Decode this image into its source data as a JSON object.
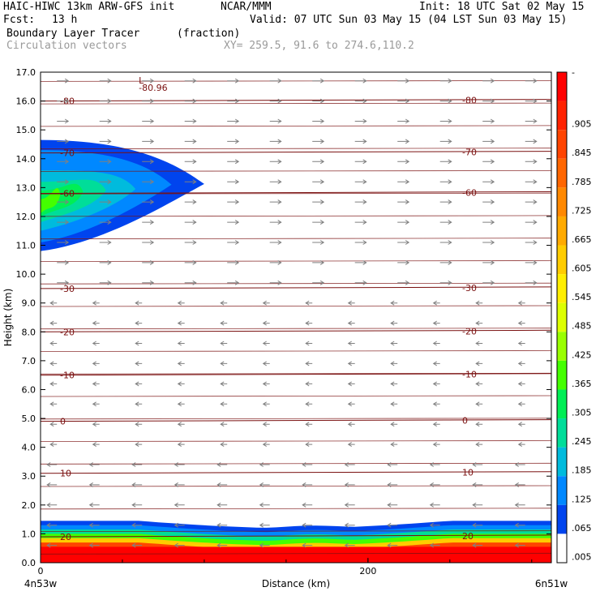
{
  "header": {
    "model": "HAIC-HIWC 13km ARW-GFS init",
    "org": "NCAR/MMM",
    "init": "Init: 18 UTC Sat 02 May 15",
    "fcst_label": "Fcst:",
    "fcst_value": "13 h",
    "valid": "Valid: 07 UTC Sun 03 May 15 (04 LST Sun 03 May 15)",
    "field_name": "Boundary Layer Tracer",
    "field_units": "(fraction)",
    "overlay_name": "Circulation vectors",
    "xy_range": "XY= 259.5, 91.6 to 274.6,110.2"
  },
  "colors": {
    "contour_line": "#7a1010",
    "vector": "#808080",
    "low_label": "L"
  },
  "chart_data": {
    "type": "heatmap",
    "title": "Boundary Layer Tracer",
    "xlabel": "Distance (km)",
    "ylabel": "Height (km)",
    "xlim": [
      0,
      312
    ],
    "ylim": [
      0,
      17
    ],
    "x_endpoints": [
      "4n53w",
      "6n51w"
    ],
    "x_ticks": [
      "0",
      "200"
    ],
    "y_ticks": [
      "0.0",
      "1.0",
      "2.0",
      "3.0",
      "4.0",
      "5.0",
      "6.0",
      "7.0",
      "8.0",
      "9.0",
      "10.0",
      "11.0",
      "12.0",
      "13.0",
      "14.0",
      "15.0",
      "16.0",
      "17.0"
    ],
    "colorbar": {
      "labels": [
        "-",
        ".905",
        ".845",
        ".785",
        ".725",
        ".665",
        ".605",
        ".545",
        ".485",
        ".425",
        ".365",
        ".305",
        ".245",
        ".185",
        ".125",
        ".065",
        ".005"
      ],
      "colors": [
        "#ff0000",
        "#ff2200",
        "#ff4400",
        "#ff6600",
        "#ff8800",
        "#ffaa00",
        "#ffcc00",
        "#ffee00",
        "#ddff00",
        "#99ff00",
        "#44ff00",
        "#00ee55",
        "#00dd99",
        "#00bbdd",
        "#0088ff",
        "#0044ee",
        "#ffffff"
      ]
    },
    "temperature_contours": [
      {
        "label": "-80",
        "km": 16.0
      },
      {
        "label": "-70",
        "km": 14.2
      },
      {
        "label": "-60",
        "km": 12.8
      },
      {
        "label": "-30",
        "km": 9.5
      },
      {
        "label": "-20",
        "km": 8.0
      },
      {
        "label": "-10",
        "km": 6.5
      },
      {
        "label": "0",
        "km": 4.9
      },
      {
        "label": "10",
        "km": 3.1
      },
      {
        "label": "20",
        "km": 0.9
      }
    ],
    "low_center": {
      "symbol": "L",
      "value": "-80.96"
    }
  }
}
